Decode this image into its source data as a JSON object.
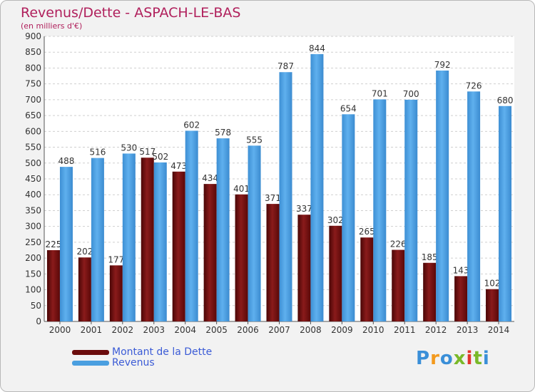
{
  "title": "Revenus/Dette - ASPACH-LE-BAS",
  "subtitle": "(en milliers d'€)",
  "brand": {
    "text": "Proxiti",
    "letter_colors": [
      "#3a8fd8",
      "#f39a1e",
      "#3a8fd8",
      "#7ab929",
      "#e2342d",
      "#7ab929",
      "#3a8fd8"
    ]
  },
  "legend": [
    {
      "label": "Montant de la Dette",
      "color": "#6b0c0c"
    },
    {
      "label": "Revenus",
      "color": "#4a9fe0"
    }
  ],
  "chart_data": {
    "type": "bar",
    "categories": [
      "2000",
      "2001",
      "2002",
      "2003",
      "2004",
      "2005",
      "2006",
      "2007",
      "2008",
      "2009",
      "2010",
      "2011",
      "2012",
      "2013",
      "2014"
    ],
    "series": [
      {
        "name": "Montant de la Dette",
        "color": "#6b0c0c",
        "values": [
          225,
          202,
          177,
          517,
          473,
          434,
          401,
          371,
          337,
          302,
          265,
          226,
          185,
          143,
          102
        ]
      },
      {
        "name": "Revenus",
        "color": "#4a9fe0",
        "values": [
          488,
          516,
          530,
          502,
          602,
          578,
          555,
          787,
          844,
          654,
          701,
          700,
          792,
          726,
          680
        ]
      }
    ],
    "ylim": [
      0,
      900
    ],
    "yticks": [
      0,
      50,
      100,
      150,
      200,
      250,
      300,
      350,
      400,
      450,
      500,
      550,
      600,
      650,
      700,
      750,
      800,
      850,
      900
    ],
    "grid": true,
    "legend_position": "bottom-left"
  }
}
